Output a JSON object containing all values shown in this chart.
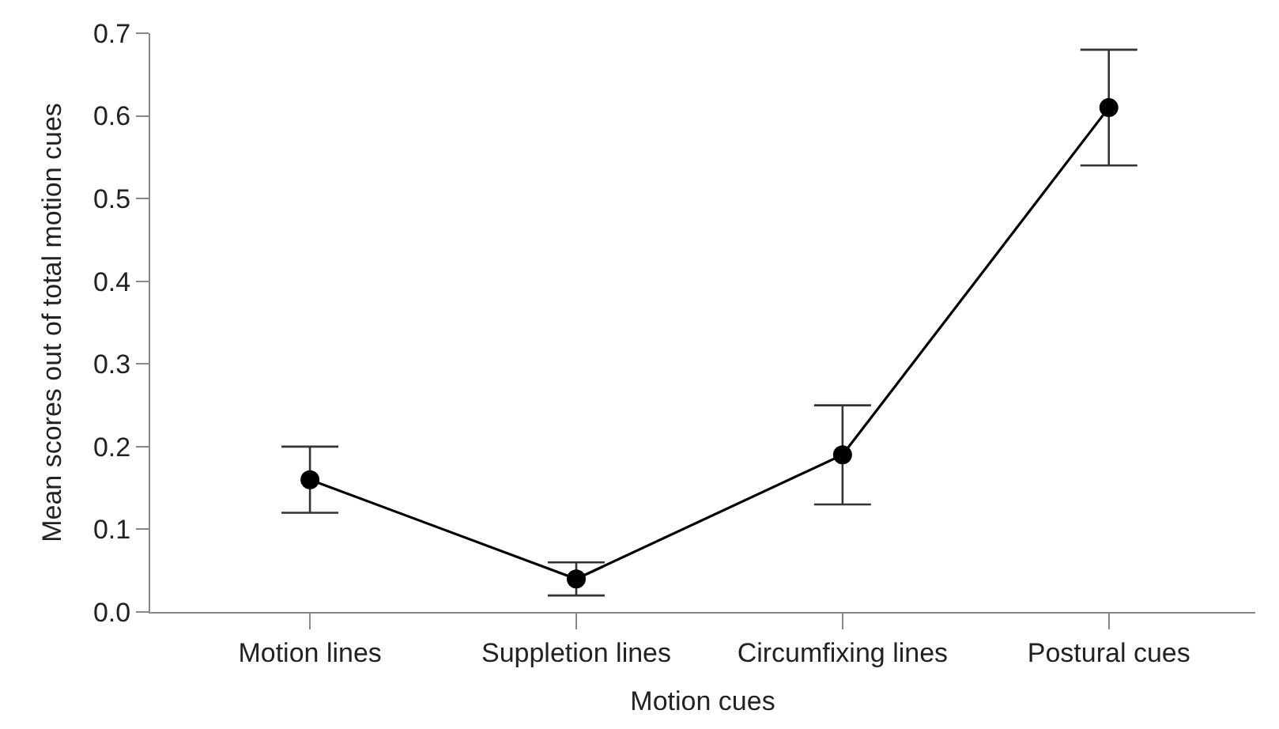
{
  "chart_data": {
    "type": "line",
    "xlabel": "Motion cues",
    "ylabel": "Mean scores out of total motion cues",
    "categories": [
      "Motion lines",
      "Suppletion lines",
      "Circumfixing lines",
      "Postural cues"
    ],
    "series": [
      {
        "color": "#000000",
        "values": [
          0.16,
          0.04,
          0.19,
          0.61
        ],
        "errors": [
          [
            0.12,
            0.2
          ],
          [
            0.02,
            0.06
          ],
          [
            0.13,
            0.25
          ],
          [
            0.54,
            0.68
          ]
        ]
      }
    ],
    "ylim": [
      0,
      0.7
    ],
    "yticks": [
      {
        "value": 0,
        "label": "0.0"
      },
      0.1,
      0.2,
      0.3,
      0.4,
      0.5,
      0.6,
      0.7
    ],
    "marker": "circle",
    "line_style": "solid"
  }
}
